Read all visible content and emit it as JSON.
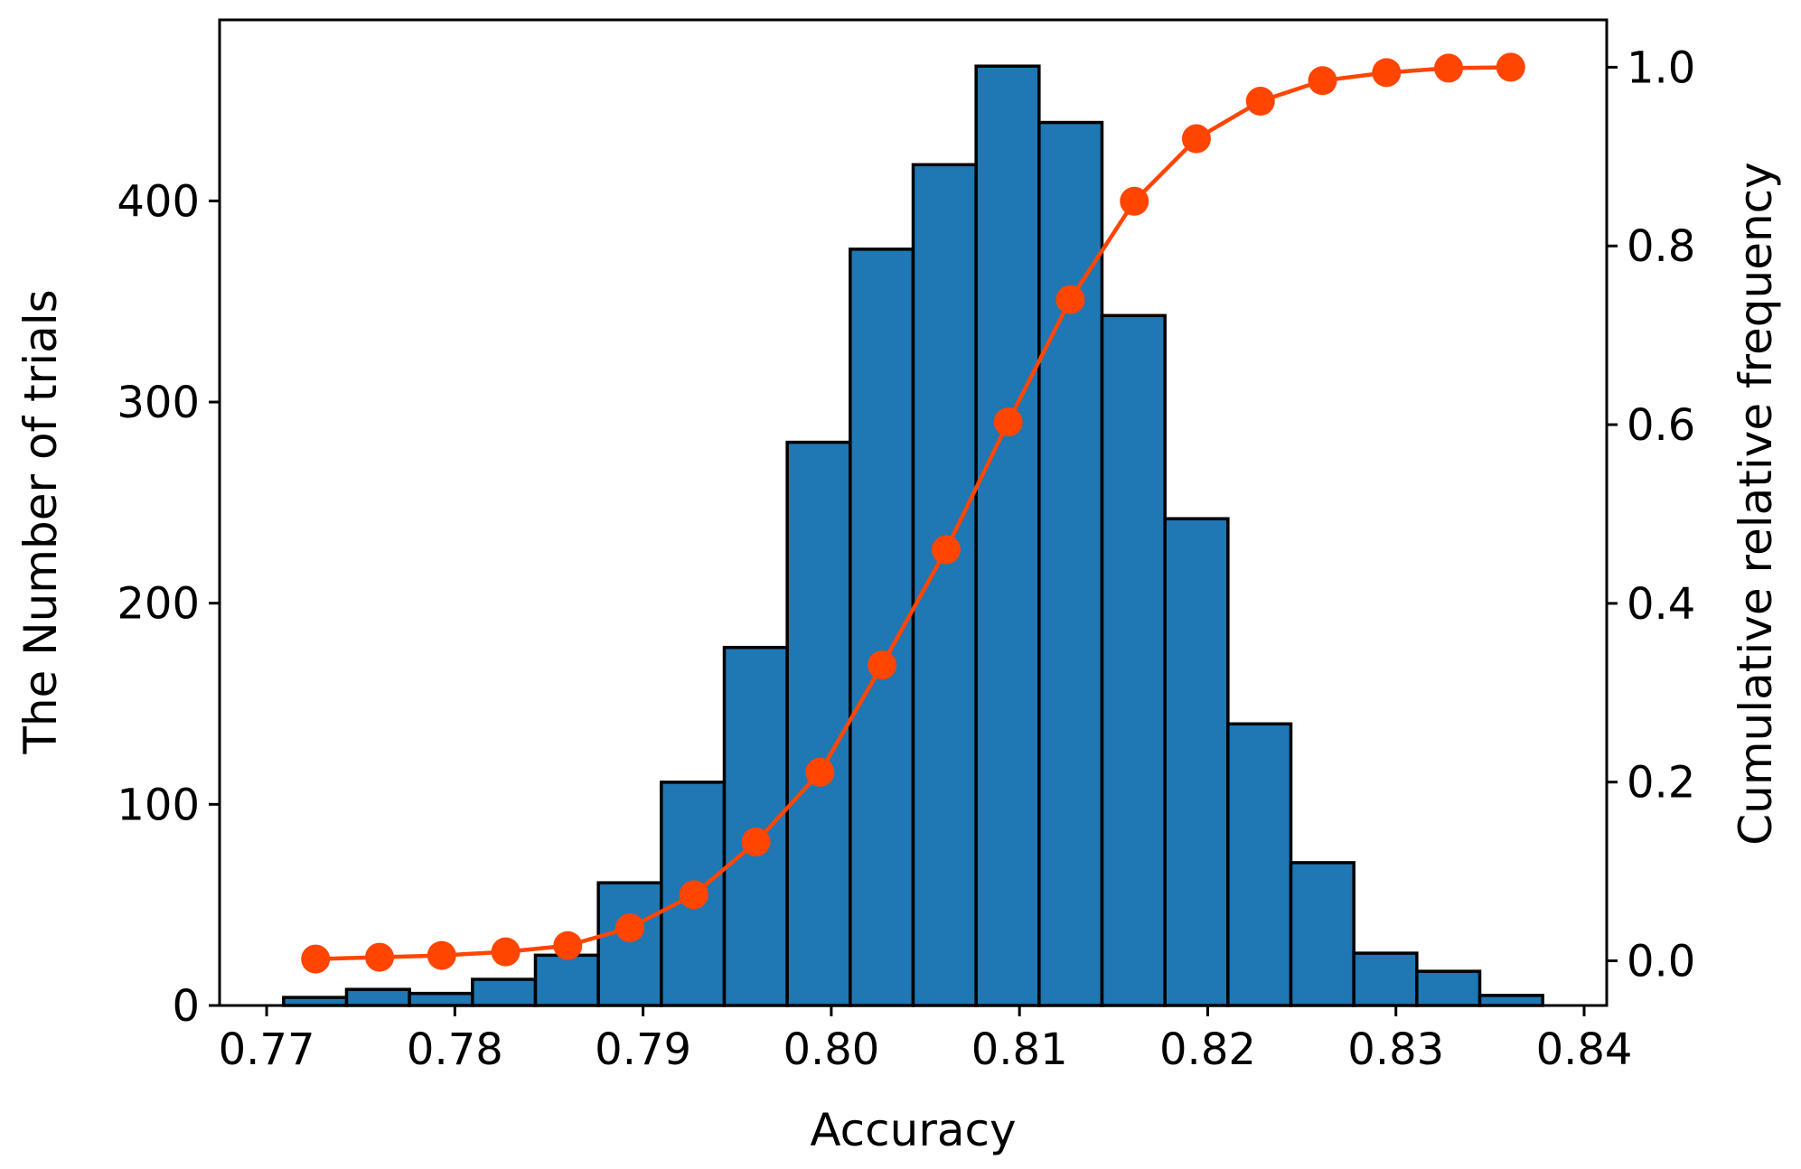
{
  "chart_data": {
    "type": "bar",
    "title": "",
    "xlabel": "Accuracy",
    "ylabel": "The Number of trials",
    "y2label": "Cumulative relative frequency",
    "xlim": [
      0.7675,
      0.8412
    ],
    "ylim": [
      0,
      490
    ],
    "y2lim": [
      -0.05,
      1.053
    ],
    "xticks": [
      "0.77",
      "0.78",
      "0.79",
      "0.80",
      "0.81",
      "0.82",
      "0.83",
      "0.84"
    ],
    "yticks": [
      "0",
      "100",
      "200",
      "300",
      "400"
    ],
    "y2ticks": [
      "0.0",
      "0.2",
      "0.4",
      "0.6",
      "0.8",
      "1.0"
    ],
    "grid": false,
    "bins": {
      "start": 0.7709,
      "width": 0.003345,
      "counts": [
        4,
        8,
        6,
        13,
        25,
        61,
        111,
        178,
        280,
        376,
        418,
        467,
        439,
        343,
        242,
        140,
        71,
        26,
        17,
        5
      ]
    },
    "cumulative": {
      "x": [
        0.7726,
        0.776,
        0.7793,
        0.7827,
        0.786,
        0.7893,
        0.7927,
        0.796,
        0.7994,
        0.8027,
        0.8061,
        0.8094,
        0.8127,
        0.8161,
        0.8194,
        0.8228,
        0.8261,
        0.8295,
        0.8328,
        0.8361
      ],
      "y": [
        0.002,
        0.004,
        0.006,
        0.01,
        0.017,
        0.037,
        0.074,
        0.133,
        0.211,
        0.331,
        0.46,
        0.603,
        0.74,
        0.85,
        0.92,
        0.962,
        0.985,
        0.994,
        0.999,
        1.0
      ]
    },
    "colors": {
      "bars": "#1f77b4",
      "line": "#ff4500",
      "edge": "#000000"
    }
  }
}
